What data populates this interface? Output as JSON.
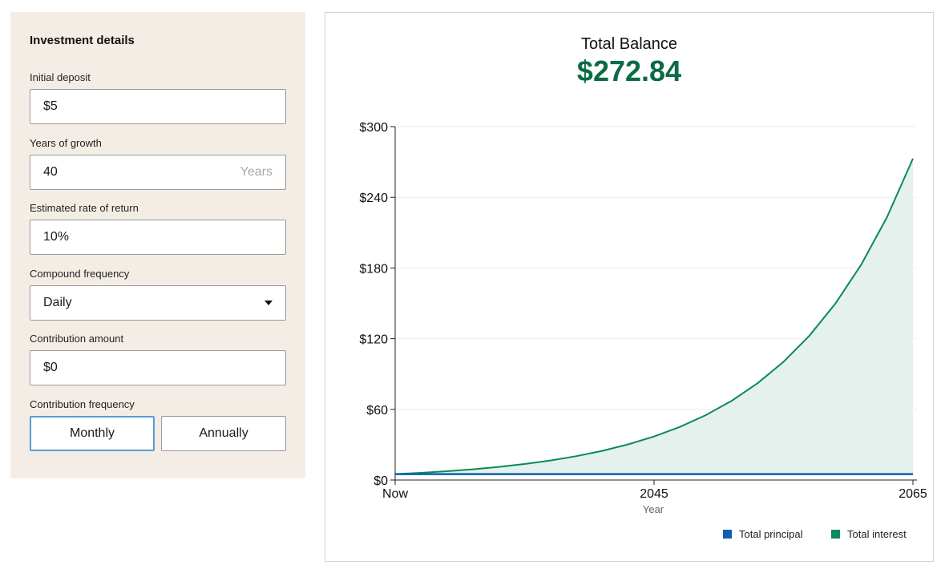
{
  "form": {
    "title": "Investment details",
    "initial_deposit": {
      "label": "Initial deposit",
      "value": "$5"
    },
    "years": {
      "label": "Years of growth",
      "value": "40",
      "suffix": "Years"
    },
    "rate": {
      "label": "Estimated rate of return",
      "value": "10%"
    },
    "compound": {
      "label": "Compound frequency",
      "value": "Daily"
    },
    "contribution": {
      "label": "Contribution amount",
      "value": "$0"
    },
    "contribution_frequency": {
      "label": "Contribution frequency",
      "options": [
        "Monthly",
        "Annually"
      ],
      "selected": "Monthly"
    }
  },
  "colors": {
    "principal": "#0b5fb4",
    "interest": "#0a8a5a",
    "interest_fill": "#e4f1ec",
    "balance_text": "#0b6b45",
    "panel_bg": "#f4ede6",
    "active_border": "#5b9bd5"
  },
  "chart_data": {
    "type": "area",
    "title": "Total Balance",
    "value": "$272.84",
    "xlabel": "Year",
    "ylabel": "",
    "x_tick_labels": [
      "Now",
      "2045",
      "2065"
    ],
    "x_tick_years": [
      0,
      20,
      40
    ],
    "y_tick_labels": [
      "$0",
      "$60",
      "$120",
      "$180",
      "$240",
      "$300"
    ],
    "ylim": [
      0,
      300
    ],
    "xlim": [
      0,
      40
    ],
    "years": [
      0,
      2,
      4,
      6,
      8,
      10,
      12,
      14,
      16,
      18,
      20,
      22,
      24,
      26,
      28,
      30,
      32,
      34,
      36,
      38,
      40
    ],
    "series": [
      {
        "name": "Total principal",
        "values": [
          5,
          5,
          5,
          5,
          5,
          5,
          5,
          5,
          5,
          5,
          5,
          5,
          5,
          5,
          5,
          5,
          5,
          5,
          5,
          5,
          5
        ]
      },
      {
        "name": "Total interest",
        "values": [
          5,
          6.11,
          7.46,
          9.11,
          11.13,
          13.59,
          16.6,
          20.27,
          24.76,
          30.24,
          36.93,
          45.1,
          55.08,
          67.27,
          82.16,
          100.34,
          122.54,
          149.66,
          182.77,
          223.22,
          272.84
        ]
      }
    ],
    "legend_position": "bottom-right",
    "grid": true
  }
}
